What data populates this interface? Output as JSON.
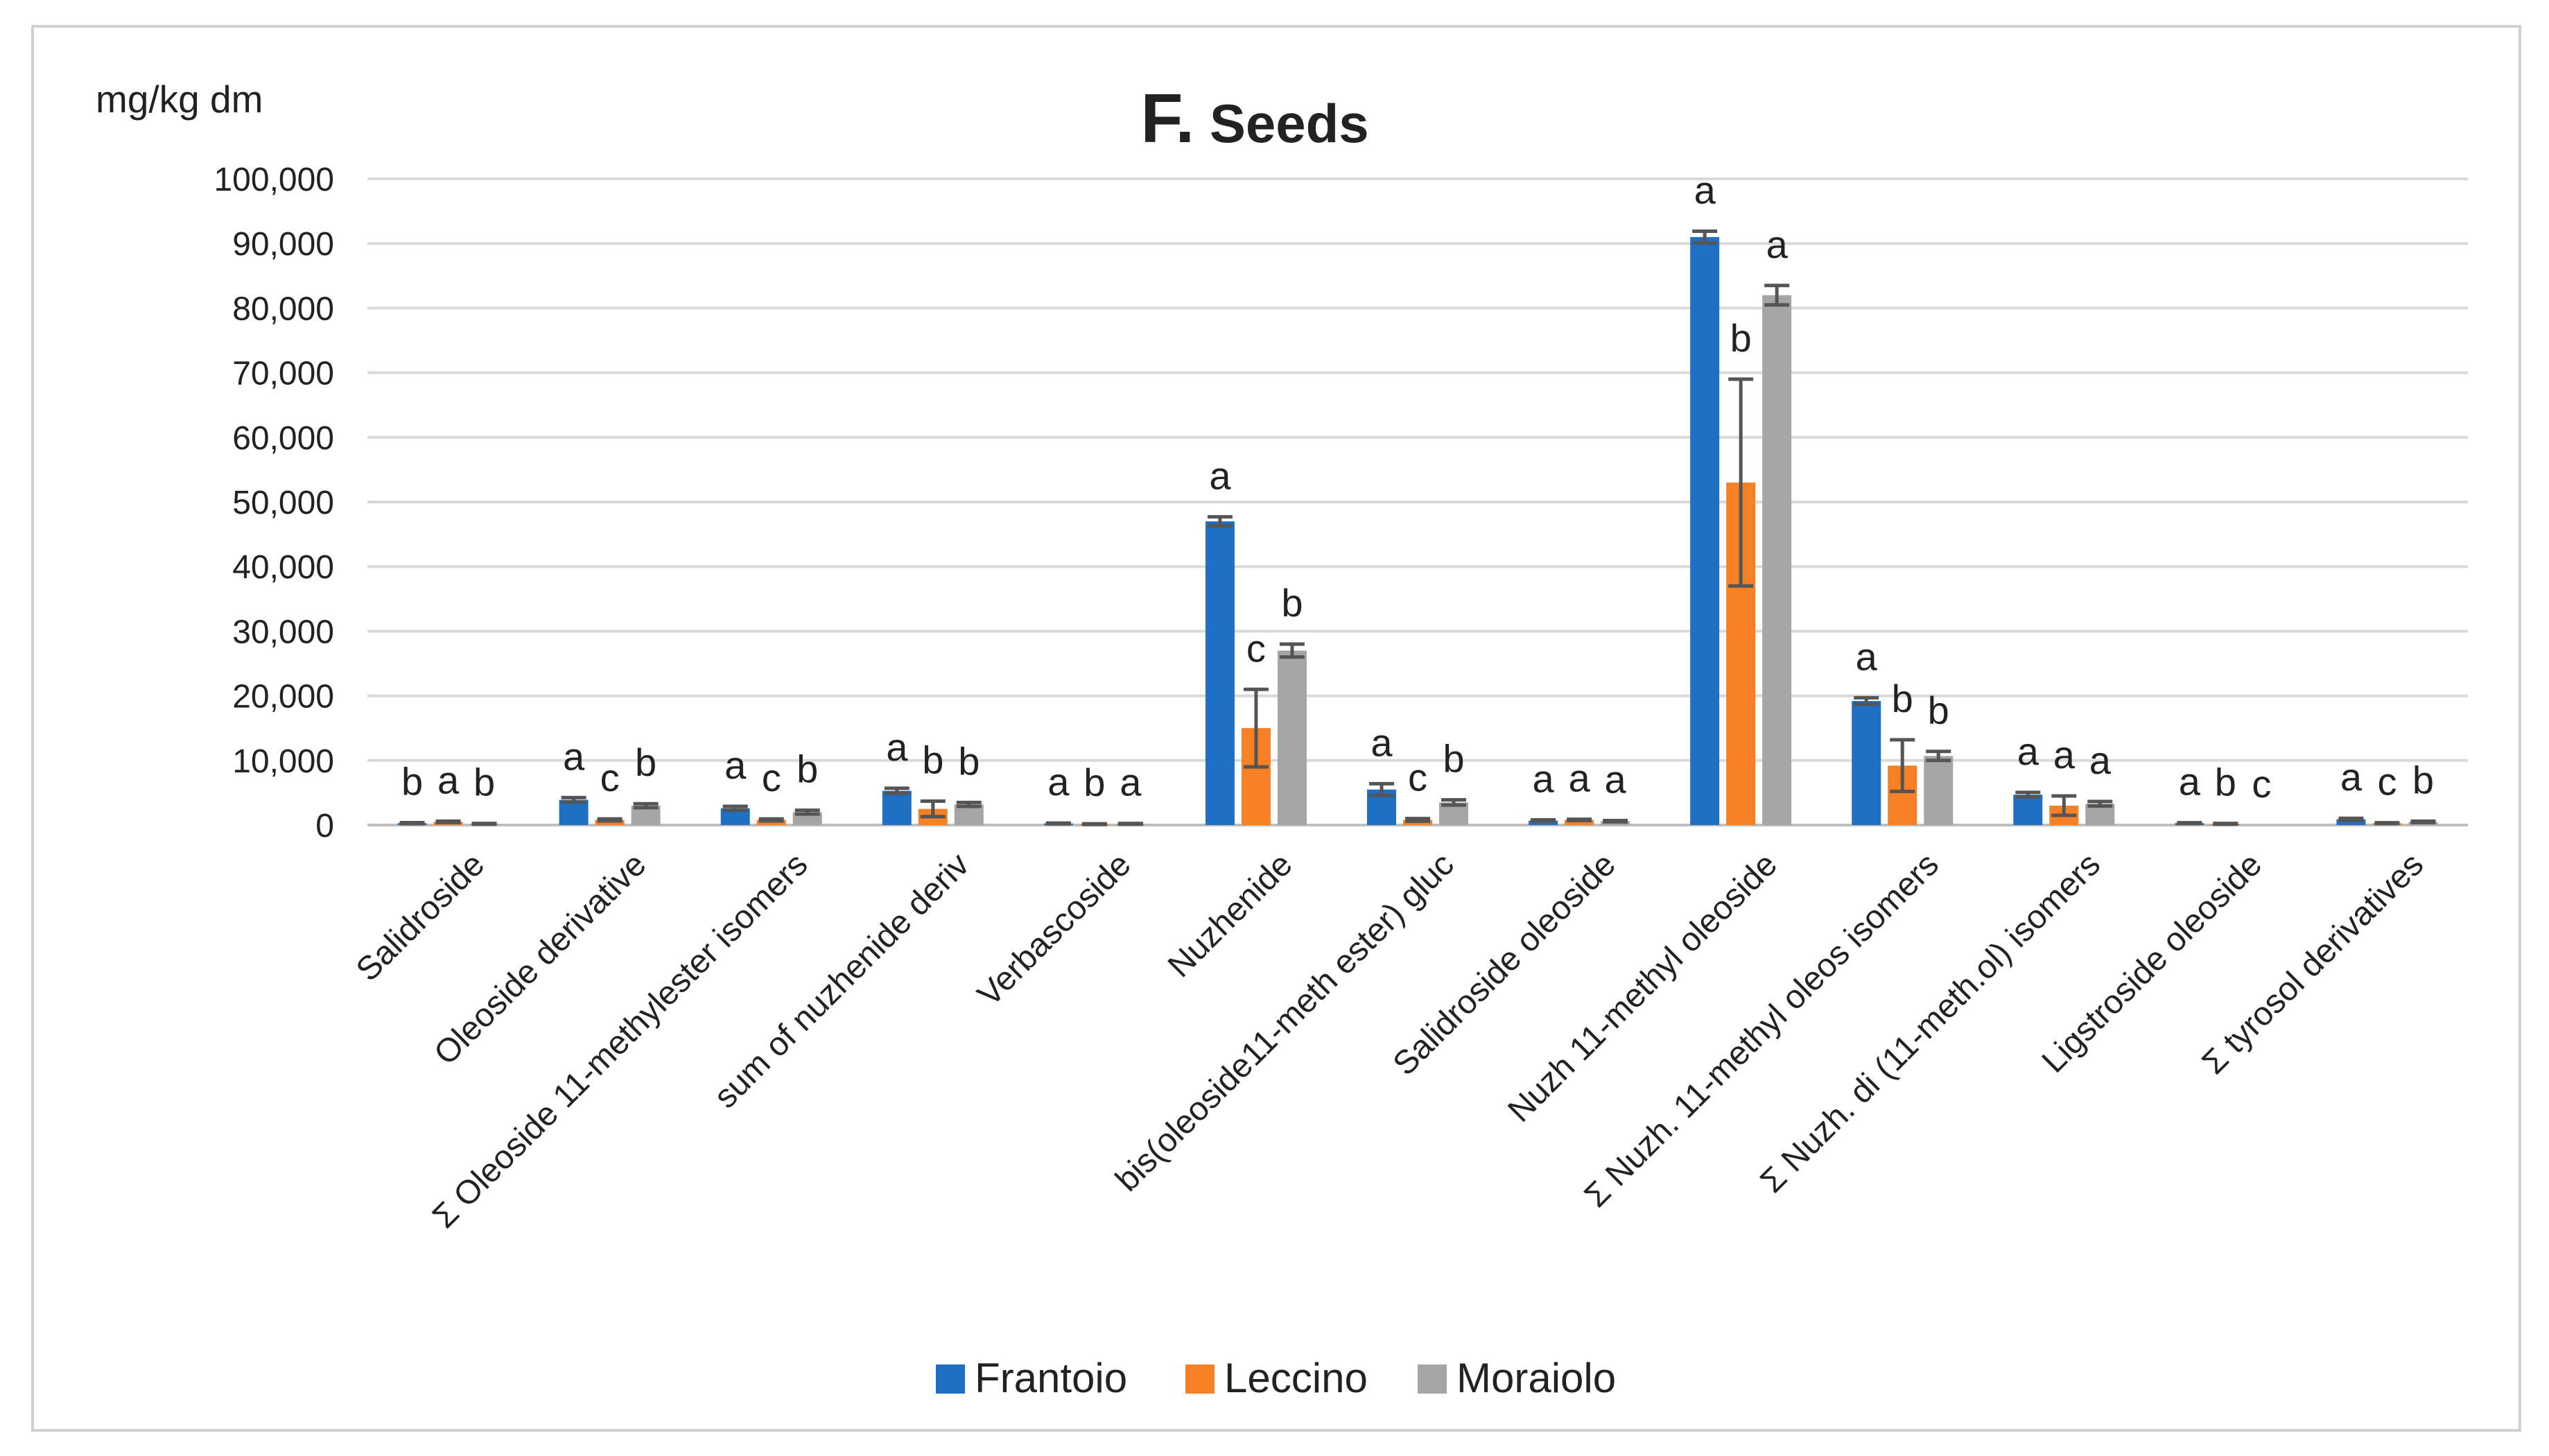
{
  "chart_data": {
    "type": "bar",
    "title_letter": "F.",
    "title_rest": " Seeds",
    "ylabel": "mg/kg dm",
    "xlabel": "",
    "ylim": [
      0,
      100000
    ],
    "yticks": [
      "0",
      "10,000",
      "20,000",
      "30,000",
      "40,000",
      "50,000",
      "60,000",
      "70,000",
      "80,000",
      "90,000",
      "100,000"
    ],
    "legend_position": "bottom-center",
    "categories": [
      "Salidroside",
      "Oleoside derivative",
      "Σ Oleoside 11-methylester isomers",
      "sum of nuzhenide deriv",
      "Verbascoside",
      "Nuzhenide",
      "bis(oleoside11-meth ester) gluc",
      "Salidroside oleoside",
      "Nuzh 11-methyl oleoside",
      "Σ Nuzh. 11-methyl oleos isomers",
      "Σ Nuzh. di (11-meth.ol) isomers",
      "Ligstroside oleoside",
      "Σ tyrosol derivatives"
    ],
    "series": [
      {
        "name": "Frantoio",
        "color": "#1f6fc5",
        "values": [
          300,
          3900,
          2600,
          5300,
          250,
          47000,
          5500,
          700,
          91000,
          19200,
          4700,
          300,
          900
        ],
        "errors": [
          80,
          350,
          300,
          400,
          60,
          700,
          900,
          100,
          900,
          500,
          350,
          60,
          150
        ]
      },
      {
        "name": "Leccino",
        "color": "#f58025",
        "values": [
          500,
          800,
          800,
          2500,
          150,
          15000,
          800,
          800,
          53000,
          9200,
          3000,
          200,
          300
        ],
        "errors": [
          100,
          150,
          150,
          1200,
          50,
          6000,
          200,
          100,
          16000,
          4000,
          1500,
          50,
          60
        ]
      },
      {
        "name": "Moraiolo",
        "color": "#a5a5a5",
        "values": [
          200,
          3000,
          2000,
          3200,
          200,
          27000,
          3500,
          600,
          82000,
          10700,
          3300,
          0,
          500
        ],
        "errors": [
          50,
          300,
          300,
          300,
          50,
          1000,
          400,
          100,
          1500,
          700,
          350,
          0,
          100
        ]
      }
    ],
    "significance_letters": [
      [
        "b",
        "a",
        "b"
      ],
      [
        "a",
        "c",
        "b"
      ],
      [
        "a",
        "c",
        "b"
      ],
      [
        "a",
        "b",
        "b"
      ],
      [
        "a",
        "b",
        "a"
      ],
      [
        "a",
        "c",
        "b"
      ],
      [
        "a",
        "c",
        "b"
      ],
      [
        "a",
        "a",
        "a"
      ],
      [
        "a",
        "b",
        "a"
      ],
      [
        "a",
        "b",
        "b"
      ],
      [
        "a",
        "a",
        "a"
      ],
      [
        "a",
        "b",
        "c"
      ],
      [
        "a",
        "c",
        "b"
      ]
    ]
  }
}
